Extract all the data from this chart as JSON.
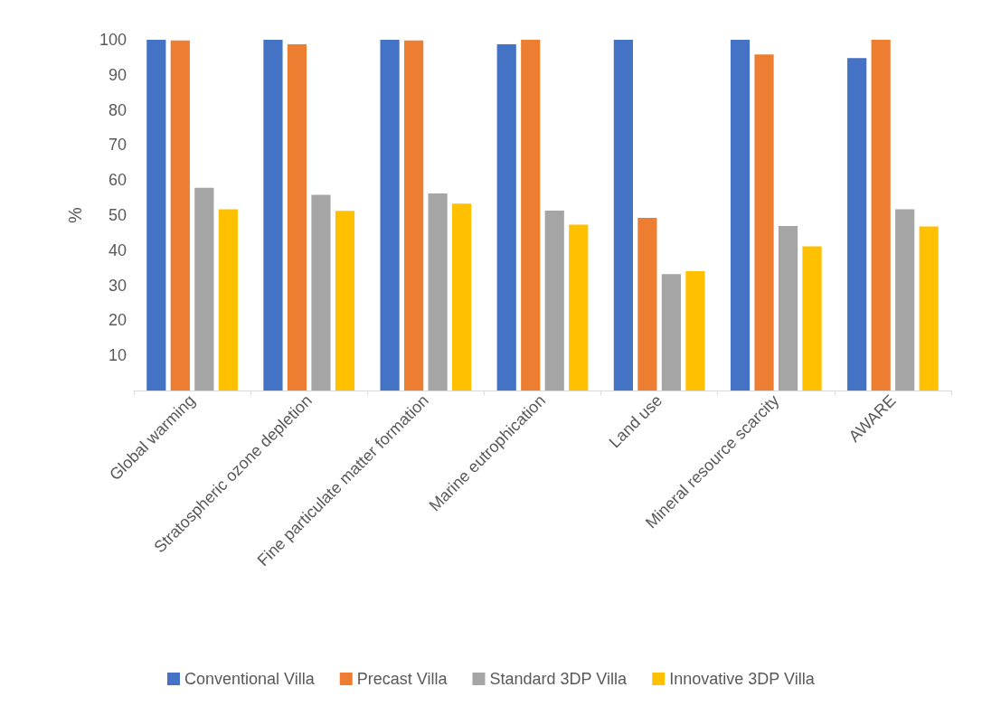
{
  "chart_data": {
    "type": "bar",
    "ylabel": "%",
    "categories": [
      "Global warming",
      "Stratospheric ozone depletion",
      "Fine particulate matter formation",
      "Marine eutrophication",
      "Land use",
      "Mineral resource scarcity",
      "AWARE"
    ],
    "series": [
      {
        "name": "Conventional Villa",
        "color": "#4472c4",
        "values": [
          100,
          100,
          100,
          98.7,
          100,
          100,
          94.8
        ]
      },
      {
        "name": "Precast Villa",
        "color": "#ed7d31",
        "values": [
          99.8,
          98.7,
          99.8,
          100,
          49.2,
          95.8,
          100
        ]
      },
      {
        "name": "Standard 3DP Villa",
        "color": "#a5a5a5",
        "values": [
          57.8,
          55.8,
          56.2,
          51.3,
          33.2,
          46.9,
          51.7
        ]
      },
      {
        "name": "Innovative 3DP Villa",
        "color": "#ffc000",
        "values": [
          51.7,
          51.2,
          53.3,
          47.3,
          34.0,
          41.1,
          46.8
        ]
      }
    ],
    "ylim": [
      0,
      100
    ],
    "yticks": [
      10,
      20,
      30,
      40,
      50,
      60,
      70,
      80,
      90,
      100
    ],
    "grid": false,
    "legend": "bottom"
  }
}
